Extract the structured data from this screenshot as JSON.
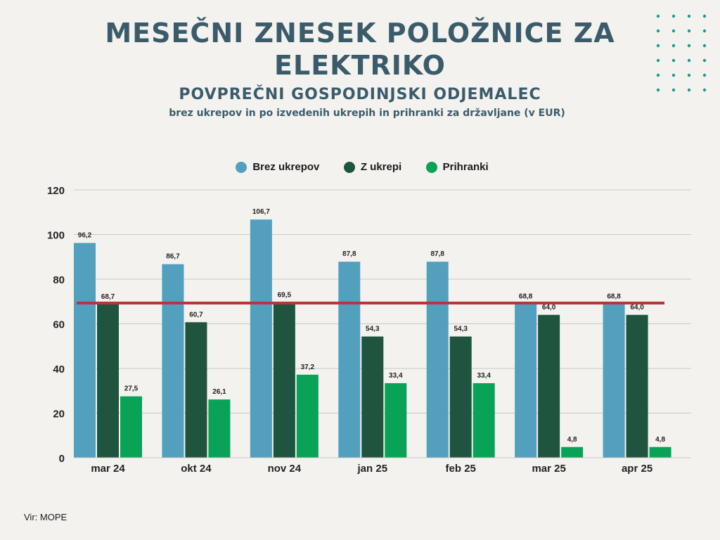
{
  "title_main": "MESEČNI ZNESEK POLOŽNICE ZA ELEKTRIKO",
  "title_sub": "POVPREČNI GOSPODINJSKI ODJEMALEC",
  "title_sub2": "brez ukrepov in po izvedenih ukrepih in prihranki za državljane (v EUR)",
  "source": "Vir: MOPE",
  "colors": {
    "brez": "#529fbe",
    "z": "#1f553e",
    "prih": "#08a356",
    "ref": "#b8363a",
    "title": "#3b5b6b",
    "dots": "#1a9a95"
  },
  "chart_data": {
    "type": "bar",
    "categories": [
      "mar 24",
      "okt 24",
      "nov 24",
      "jan 25",
      "feb 25",
      "mar 25",
      "apr 25"
    ],
    "series": [
      {
        "name": "Brez ukrepov",
        "values": [
          96.2,
          86.7,
          106.7,
          87.8,
          87.8,
          68.8,
          68.8
        ],
        "labels": [
          "96,2",
          "86,7",
          "106,7",
          "87,8",
          "87,8",
          "68,8",
          "68,8"
        ],
        "color": "#529fbe"
      },
      {
        "name": "Z ukrepi",
        "values": [
          68.7,
          60.7,
          69.5,
          54.3,
          54.3,
          64.0,
          64.0
        ],
        "labels": [
          "68,7",
          "60,7",
          "69,5",
          "54,3",
          "54,3",
          "64,0",
          "64,0"
        ],
        "color": "#1f553e"
      },
      {
        "name": "Prihranki",
        "values": [
          27.5,
          26.1,
          37.2,
          33.4,
          33.4,
          4.8,
          4.8
        ],
        "labels": [
          "27,5",
          "26,1",
          "37,2",
          "33,4",
          "33,4",
          "4,8",
          "4,8"
        ],
        "color": "#08a356"
      }
    ],
    "reference_line": {
      "value": 69.3,
      "color": "#b8363a"
    },
    "ylim": [
      0,
      120
    ],
    "yticks": [
      0,
      20,
      40,
      60,
      80,
      100,
      120
    ],
    "ytick_labels": [
      "0",
      "20",
      "40",
      "60",
      "80",
      "100",
      "120"
    ],
    "grid": true,
    "legend_position": "top-center",
    "xlabel": "",
    "ylabel": ""
  }
}
